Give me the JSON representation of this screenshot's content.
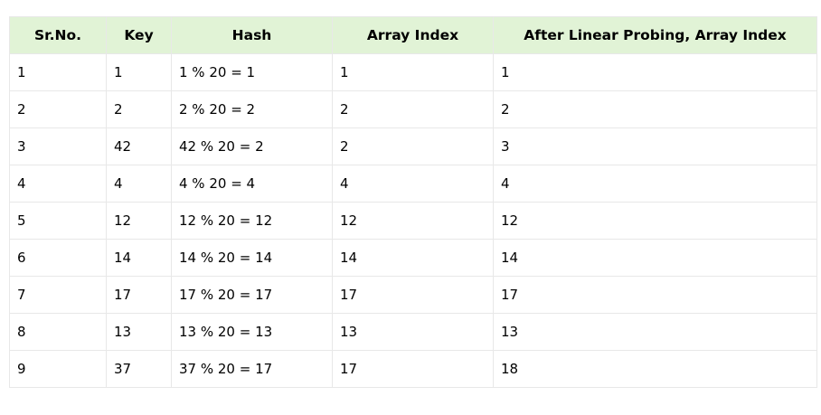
{
  "table": {
    "headers": [
      "Sr.No.",
      "Key",
      "Hash",
      "Array Index",
      "After Linear Probing, Array Index"
    ],
    "rows": [
      [
        "1",
        "1",
        "1 % 20 = 1",
        "1",
        "1"
      ],
      [
        "2",
        "2",
        "2 % 20 = 2",
        "2",
        "2"
      ],
      [
        "3",
        "42",
        "42 % 20 = 2",
        "2",
        "3"
      ],
      [
        "4",
        "4",
        "4 % 20 = 4",
        "4",
        "4"
      ],
      [
        "5",
        "12",
        "12 % 20 = 12",
        "12",
        "12"
      ],
      [
        "6",
        "14",
        "14 % 20 = 14",
        "14",
        "14"
      ],
      [
        "7",
        "17",
        "17 % 20 = 17",
        "17",
        "17"
      ],
      [
        "8",
        "13",
        "13 % 20 = 13",
        "13",
        "13"
      ],
      [
        "9",
        "37",
        "37 % 20 = 17",
        "17",
        "18"
      ]
    ]
  },
  "colors": {
    "header_background": "#e1f3d6",
    "border": "#e8e8e8"
  }
}
